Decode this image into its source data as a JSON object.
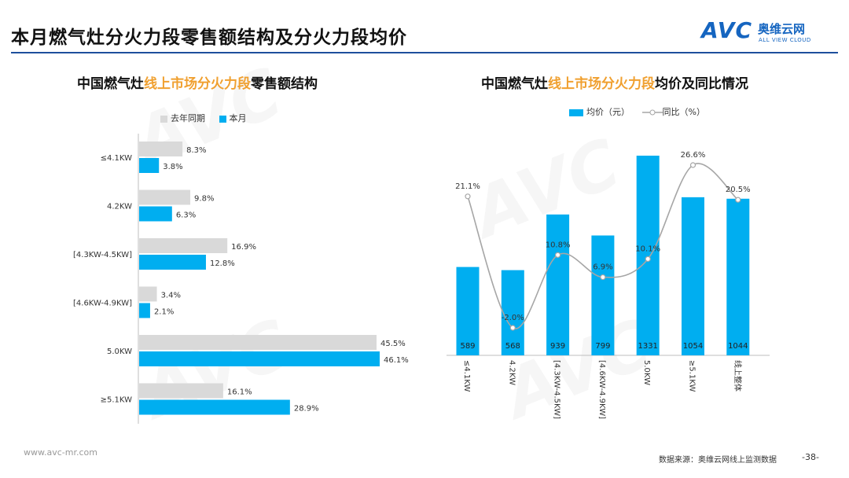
{
  "header": {
    "title": "本月燃气灶分火力段零售额结构及分火力段均价",
    "logo_main": "AVC",
    "logo_cn": "奥维云网",
    "logo_en": "ALL VIEW CLOUD"
  },
  "left_chart": {
    "title_pre": "中国燃气灶",
    "title_hl": "线上市场分火力段",
    "title_post": "零售额结构"
  },
  "right_chart": {
    "title_pre": "中国燃气灶",
    "title_hl": "线上市场分火力段",
    "title_post": "均价及同比情况"
  },
  "footer": {
    "url": "www.avc-mr.com",
    "source": "数据来源：奥维云网线上监测数据",
    "page": "-38-"
  },
  "colors": {
    "current": "#00aef0",
    "last_year": "#d9d9d9",
    "line": "#a6a6a6"
  },
  "chart_data": [
    {
      "type": "bar",
      "orientation": "horizontal",
      "categories": [
        "≤4.1KW",
        "4.2KW",
        "[4.3KW-4.5KW]",
        "[4.6KW-4.9KW]",
        "5.0KW",
        "≥5.1KW"
      ],
      "series": [
        {
          "name": "去年同期",
          "values": [
            8.3,
            9.8,
            16.9,
            3.4,
            45.5,
            16.1
          ],
          "labels": [
            "8.3%",
            "9.8%",
            "16.9%",
            "3.4%",
            "45.5%",
            "16.1%"
          ]
        },
        {
          "name": "本月",
          "values": [
            3.8,
            6.3,
            12.8,
            2.1,
            46.1,
            28.9
          ],
          "labels": [
            "3.8%",
            "6.3%",
            "12.8%",
            "2.1%",
            "46.1%",
            "28.9%"
          ]
        }
      ],
      "xlim": [
        0,
        50
      ]
    },
    {
      "type": "bar",
      "combo": "bar+line",
      "categories": [
        "≤4.1KW",
        "4.2KW",
        "[4.3KW-4.5KW]",
        "[4.6KW-4.9KW]",
        "5.0KW",
        "≥5.1KW",
        "线上整体"
      ],
      "bar_series": {
        "name": "均价（元）",
        "values": [
          589,
          568,
          939,
          799,
          1331,
          1054,
          1044
        ],
        "labels": [
          "589",
          "568",
          "939",
          "799",
          "1331",
          "1054",
          "1044"
        ]
      },
      "line_series": {
        "name": "同比（%）",
        "values": [
          21.1,
          -2.0,
          10.8,
          6.9,
          10.1,
          26.6,
          20.5
        ],
        "labels": [
          "21.1%",
          "-2.0%",
          "10.8%",
          "6.9%",
          "10.1%",
          "26.6%",
          "20.5%"
        ]
      },
      "ylim_bar": [
        0,
        1400
      ],
      "ylim_line": [
        -4,
        33
      ]
    }
  ]
}
